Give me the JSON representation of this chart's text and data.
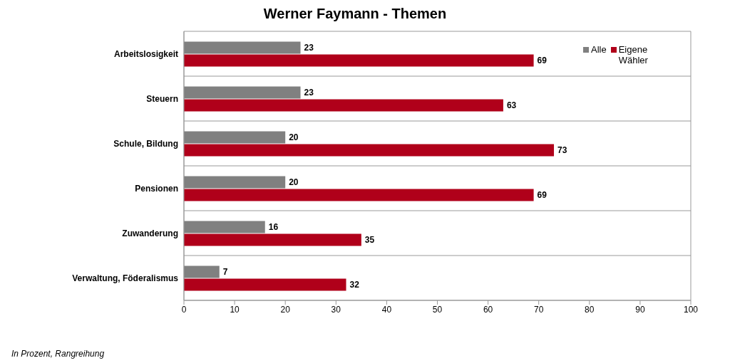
{
  "chart_data": {
    "type": "bar",
    "orientation": "horizontal",
    "title": "Werner Faymann - Themen",
    "categories": [
      "Arbeitslosigkeit",
      "Steuern",
      "Schule, Bildung",
      "Pensionen",
      "Zuwanderung",
      "Verwaltung, Föderalismus"
    ],
    "series": [
      {
        "name": "Alle",
        "color": "#808080",
        "values": [
          23,
          23,
          20,
          20,
          16,
          7
        ]
      },
      {
        "name": "Eigene Wähler",
        "color": "#b0001a",
        "values": [
          69,
          63,
          73,
          69,
          35,
          32
        ]
      }
    ],
    "xlim": [
      0,
      100
    ],
    "xticks": [
      0,
      10,
      20,
      30,
      40,
      50,
      60,
      70,
      80,
      90,
      100
    ],
    "grid": "y",
    "legend": "top right",
    "data_labels": true,
    "annotations": [
      "In Prozent, Rangreihung"
    ]
  }
}
